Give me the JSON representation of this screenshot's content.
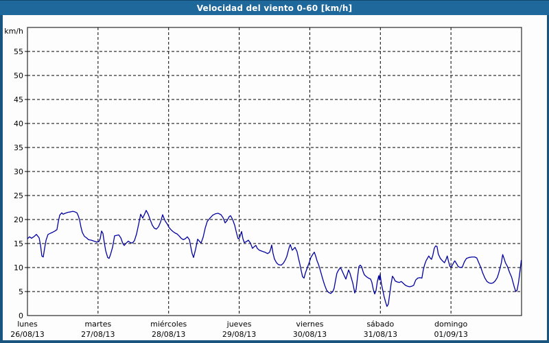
{
  "window": {
    "title": "Velocidad del viento 0-60 [km/h]"
  },
  "colors": {
    "titlebar_bg": "#1e689b",
    "window_border": "#1a5580",
    "content_bg": "#fdfdfd",
    "grid": "#000000",
    "line": "#0000a0",
    "text": "#000000",
    "title_text": "#ffffff"
  },
  "chart_data": {
    "type": "line",
    "title": "Velocidad del viento 0-60 [km/h]",
    "series_name": "Velocidad del viento",
    "grid": "dashed",
    "legend": "none",
    "y_axis": {
      "unit_label": "km/h",
      "min": 0,
      "max": 60,
      "tick_step": 5,
      "tick_labels": [
        "0",
        "5",
        "10",
        "15",
        "20",
        "25",
        "30",
        "35",
        "40",
        "45",
        "50",
        "55"
      ]
    },
    "x_axis": {
      "unit": "days",
      "range_days": [
        0,
        7
      ],
      "days": [
        {
          "name": "lunes",
          "date": "26/08/13"
        },
        {
          "name": "martes",
          "date": "27/08/13"
        },
        {
          "name": "miércoles",
          "date": "28/08/13"
        },
        {
          "name": "jueves",
          "date": "29/08/13"
        },
        {
          "name": "viernes",
          "date": "30/08/13"
        },
        {
          "name": "sábado",
          "date": "31/08/13"
        },
        {
          "name": "domingo",
          "date": "01/09/13"
        }
      ]
    },
    "points": [
      [
        0.0,
        16.0
      ],
      [
        0.029,
        16.4
      ],
      [
        0.058,
        16.1
      ],
      [
        0.097,
        16.5
      ],
      [
        0.126,
        16.9
      ],
      [
        0.165,
        16.2
      ],
      [
        0.185,
        14.7
      ],
      [
        0.204,
        12.4
      ],
      [
        0.224,
        12.2
      ],
      [
        0.243,
        14.0
      ],
      [
        0.263,
        15.7
      ],
      [
        0.292,
        16.9
      ],
      [
        0.321,
        17.1
      ],
      [
        0.35,
        17.3
      ],
      [
        0.389,
        17.6
      ],
      [
        0.418,
        17.9
      ],
      [
        0.437,
        19.5
      ],
      [
        0.457,
        20.9
      ],
      [
        0.486,
        21.4
      ],
      [
        0.506,
        21.1
      ],
      [
        0.535,
        21.3
      ],
      [
        0.574,
        21.5
      ],
      [
        0.613,
        21.6
      ],
      [
        0.642,
        21.7
      ],
      [
        0.671,
        21.6
      ],
      [
        0.7,
        21.4
      ],
      [
        0.719,
        20.8
      ],
      [
        0.739,
        19.9
      ],
      [
        0.758,
        18.4
      ],
      [
        0.778,
        17.3
      ],
      [
        0.807,
        16.5
      ],
      [
        0.836,
        16.2
      ],
      [
        0.865,
        15.8
      ],
      [
        0.904,
        15.7
      ],
      [
        0.943,
        15.5
      ],
      [
        0.982,
        15.3
      ],
      [
        1.011,
        15.4
      ],
      [
        1.031,
        16.0
      ],
      [
        1.05,
        17.6
      ],
      [
        1.069,
        17.1
      ],
      [
        1.089,
        15.2
      ],
      [
        1.108,
        13.5
      ],
      [
        1.137,
        12.1
      ],
      [
        1.157,
        11.9
      ],
      [
        1.176,
        12.7
      ],
      [
        1.206,
        14.2
      ],
      [
        1.235,
        16.6
      ],
      [
        1.264,
        16.7
      ],
      [
        1.293,
        16.8
      ],
      [
        1.322,
        16.2
      ],
      [
        1.351,
        15.0
      ],
      [
        1.371,
        14.6
      ],
      [
        1.4,
        15.1
      ],
      [
        1.429,
        15.5
      ],
      [
        1.458,
        15.2
      ],
      [
        1.487,
        15.1
      ],
      [
        1.516,
        15.6
      ],
      [
        1.546,
        17.0
      ],
      [
        1.575,
        19.0
      ],
      [
        1.604,
        21.1
      ],
      [
        1.633,
        20.3
      ],
      [
        1.662,
        21.2
      ],
      [
        1.682,
        21.9
      ],
      [
        1.711,
        21.1
      ],
      [
        1.74,
        19.9
      ],
      [
        1.769,
        18.8
      ],
      [
        1.798,
        18.2
      ],
      [
        1.827,
        18.0
      ],
      [
        1.857,
        18.5
      ],
      [
        1.886,
        19.5
      ],
      [
        1.915,
        21.0
      ],
      [
        1.934,
        20.3
      ],
      [
        1.954,
        19.6
      ],
      [
        1.983,
        19.0
      ],
      [
        2.003,
        18.4
      ],
      [
        2.032,
        17.9
      ],
      [
        2.061,
        17.5
      ],
      [
        2.09,
        17.2
      ],
      [
        2.119,
        17.0
      ],
      [
        2.148,
        16.6
      ],
      [
        2.178,
        16.1
      ],
      [
        2.207,
        15.8
      ],
      [
        2.236,
        16.0
      ],
      [
        2.265,
        16.4
      ],
      [
        2.294,
        15.8
      ],
      [
        2.314,
        14.3
      ],
      [
        2.333,
        12.9
      ],
      [
        2.353,
        12.1
      ],
      [
        2.382,
        13.8
      ],
      [
        2.411,
        15.9
      ],
      [
        2.44,
        15.4
      ],
      [
        2.46,
        15.1
      ],
      [
        2.489,
        16.3
      ],
      [
        2.518,
        18.2
      ],
      [
        2.547,
        19.6
      ],
      [
        2.586,
        20.3
      ],
      [
        2.625,
        20.9
      ],
      [
        2.664,
        21.2
      ],
      [
        2.703,
        21.3
      ],
      [
        2.742,
        21.0
      ],
      [
        2.771,
        20.4
      ],
      [
        2.8,
        19.3
      ],
      [
        2.829,
        19.8
      ],
      [
        2.858,
        20.6
      ],
      [
        2.878,
        20.8
      ],
      [
        2.907,
        20.0
      ],
      [
        2.936,
        18.8
      ],
      [
        2.965,
        17.0
      ],
      [
        2.985,
        16.0
      ],
      [
        3.004,
        16.2
      ],
      [
        3.033,
        17.5
      ],
      [
        3.053,
        16.0
      ],
      [
        3.072,
        15.2
      ],
      [
        3.101,
        15.4
      ],
      [
        3.13,
        15.7
      ],
      [
        3.159,
        15.1
      ],
      [
        3.188,
        14.0
      ],
      [
        3.217,
        14.4
      ],
      [
        3.237,
        14.6
      ],
      [
        3.256,
        14.0
      ],
      [
        3.285,
        13.6
      ],
      [
        3.324,
        13.4
      ],
      [
        3.363,
        13.2
      ],
      [
        3.402,
        12.9
      ],
      [
        3.431,
        13.2
      ],
      [
        3.45,
        14.1
      ],
      [
        3.46,
        14.7
      ],
      [
        3.479,
        13.0
      ],
      [
        3.499,
        11.8
      ],
      [
        3.528,
        11.0
      ],
      [
        3.557,
        10.6
      ],
      [
        3.596,
        10.5
      ],
      [
        3.625,
        10.9
      ],
      [
        3.654,
        11.6
      ],
      [
        3.674,
        12.3
      ],
      [
        3.704,
        14.0
      ],
      [
        3.723,
        14.8
      ],
      [
        3.752,
        13.6
      ],
      [
        3.772,
        13.9
      ],
      [
        3.791,
        14.2
      ],
      [
        3.82,
        13.3
      ],
      [
        3.84,
        11.9
      ],
      [
        3.86,
        10.7
      ],
      [
        3.879,
        9.3
      ],
      [
        3.898,
        8.1
      ],
      [
        3.918,
        7.8
      ],
      [
        3.937,
        8.8
      ],
      [
        3.966,
        10.0
      ],
      [
        3.996,
        11.2
      ],
      [
        4.015,
        12.1
      ],
      [
        4.044,
        12.8
      ],
      [
        4.064,
        13.2
      ],
      [
        4.083,
        12.4
      ],
      [
        4.103,
        11.4
      ],
      [
        4.122,
        10.7
      ],
      [
        4.151,
        9.3
      ],
      [
        4.18,
        7.8
      ],
      [
        4.209,
        6.4
      ],
      [
        4.238,
        5.3
      ],
      [
        4.268,
        4.8
      ],
      [
        4.297,
        4.6
      ],
      [
        4.326,
        5.0
      ],
      [
        4.345,
        5.7
      ],
      [
        4.365,
        7.4
      ],
      [
        4.384,
        8.8
      ],
      [
        4.404,
        9.4
      ],
      [
        4.433,
        10.0
      ],
      [
        4.452,
        9.5
      ],
      [
        4.482,
        8.5
      ],
      [
        4.511,
        7.6
      ],
      [
        4.53,
        8.5
      ],
      [
        4.55,
        9.5
      ],
      [
        4.569,
        8.8
      ],
      [
        4.589,
        7.8
      ],
      [
        4.608,
        6.8
      ],
      [
        4.627,
        5.5
      ],
      [
        4.637,
        4.7
      ],
      [
        4.657,
        5.5
      ],
      [
        4.676,
        8.0
      ],
      [
        4.696,
        10.2
      ],
      [
        4.715,
        10.5
      ],
      [
        4.734,
        10.2
      ],
      [
        4.754,
        9.2
      ],
      [
        4.773,
        8.5
      ],
      [
        4.802,
        8.1
      ],
      [
        4.831,
        7.8
      ],
      [
        4.861,
        7.6
      ],
      [
        4.88,
        6.9
      ],
      [
        4.899,
        5.5
      ],
      [
        4.919,
        4.5
      ],
      [
        4.938,
        5.2
      ],
      [
        4.957,
        7.1
      ],
      [
        4.977,
        8.3
      ],
      [
        4.986,
        7.4
      ],
      [
        4.996,
        8.6
      ],
      [
        5.015,
        6.6
      ],
      [
        5.035,
        5.2
      ],
      [
        5.054,
        3.9
      ],
      [
        5.074,
        2.8
      ],
      [
        5.093,
        1.9
      ],
      [
        5.113,
        2.4
      ],
      [
        5.132,
        4.5
      ],
      [
        5.152,
        6.6
      ],
      [
        5.171,
        8.2
      ],
      [
        5.19,
        7.8
      ],
      [
        5.21,
        7.2
      ],
      [
        5.239,
        7.0
      ],
      [
        5.268,
        6.9
      ],
      [
        5.297,
        7.1
      ],
      [
        5.326,
        6.7
      ],
      [
        5.355,
        6.3
      ],
      [
        5.385,
        6.1
      ],
      [
        5.414,
        6.0
      ],
      [
        5.443,
        6.1
      ],
      [
        5.472,
        6.3
      ],
      [
        5.501,
        7.4
      ],
      [
        5.53,
        7.8
      ],
      [
        5.559,
        7.9
      ],
      [
        5.588,
        7.8
      ],
      [
        5.608,
        9.5
      ],
      [
        5.627,
        10.6
      ],
      [
        5.647,
        11.4
      ],
      [
        5.666,
        11.9
      ],
      [
        5.686,
        12.4
      ],
      [
        5.705,
        12.0
      ],
      [
        5.724,
        11.7
      ],
      [
        5.744,
        12.6
      ],
      [
        5.763,
        14.0
      ],
      [
        5.782,
        14.5
      ],
      [
        5.802,
        14.4
      ],
      [
        5.821,
        12.8
      ],
      [
        5.85,
        11.9
      ],
      [
        5.879,
        11.4
      ],
      [
        5.908,
        11.0
      ],
      [
        5.928,
        11.6
      ],
      [
        5.947,
        12.4
      ],
      [
        5.967,
        11.2
      ],
      [
        5.986,
        10.2
      ],
      [
        6.005,
        10.1
      ],
      [
        6.034,
        10.9
      ],
      [
        6.054,
        11.4
      ],
      [
        6.083,
        10.7
      ],
      [
        6.103,
        10.2
      ],
      [
        6.132,
        10.0
      ],
      [
        6.161,
        10.1
      ],
      [
        6.19,
        11.2
      ],
      [
        6.219,
        11.9
      ],
      [
        6.258,
        12.1
      ],
      [
        6.297,
        12.2
      ],
      [
        6.336,
        12.2
      ],
      [
        6.365,
        12.0
      ],
      [
        6.394,
        11.0
      ],
      [
        6.423,
        10.0
      ],
      [
        6.452,
        8.8
      ],
      [
        6.481,
        7.8
      ],
      [
        6.51,
        7.1
      ],
      [
        6.539,
        6.8
      ],
      [
        6.568,
        6.7
      ],
      [
        6.597,
        6.8
      ],
      [
        6.626,
        7.2
      ],
      [
        6.656,
        7.9
      ],
      [
        6.675,
        8.8
      ],
      [
        6.694,
        9.8
      ],
      [
        6.714,
        11.0
      ],
      [
        6.733,
        12.7
      ],
      [
        6.752,
        11.9
      ],
      [
        6.772,
        11.0
      ],
      [
        6.801,
        10.2
      ],
      [
        6.83,
        9.0
      ],
      [
        6.859,
        8.0
      ],
      [
        6.879,
        6.9
      ],
      [
        6.898,
        5.9
      ],
      [
        6.918,
        5.0
      ],
      [
        6.937,
        5.3
      ],
      [
        6.957,
        6.9
      ],
      [
        6.976,
        9.0
      ],
      [
        6.996,
        11.5
      ]
    ]
  }
}
